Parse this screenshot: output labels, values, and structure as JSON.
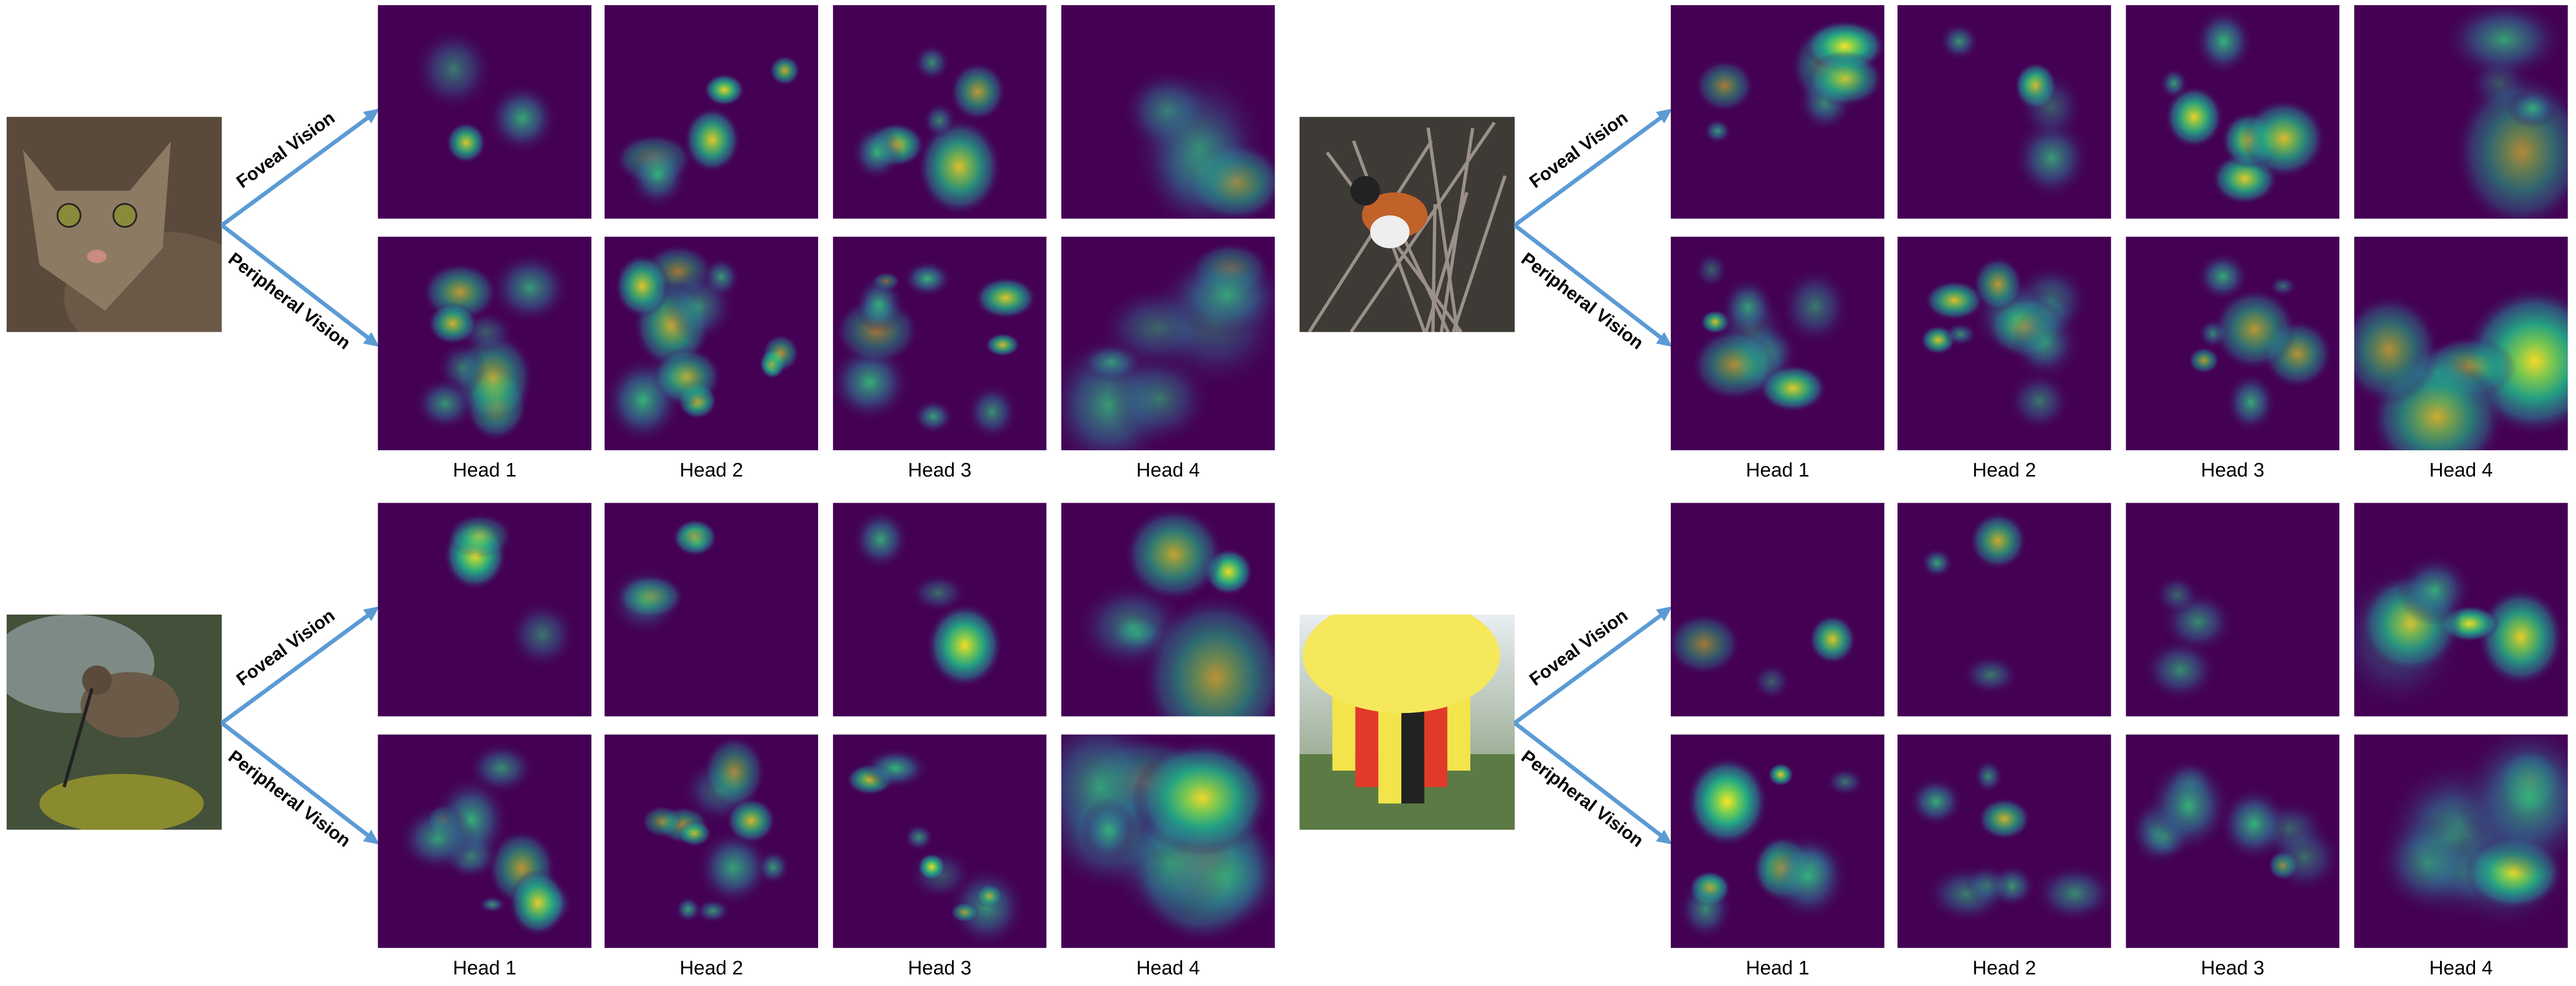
{
  "panels": [
    {
      "foveal_label": "Foveal Vision",
      "peripheral_label": "Peripheral Vision",
      "heads": [
        "Head 1",
        "Head 2",
        "Head 3",
        "Head 4"
      ]
    },
    {
      "foveal_label": "Foveal Vision",
      "peripheral_label": "Peripheral Vision",
      "heads": [
        "Head 1",
        "Head 2",
        "Head 3",
        "Head 4"
      ]
    },
    {
      "foveal_label": "Foveal Vision",
      "peripheral_label": "Peripheral Vision",
      "heads": [
        "Head 1",
        "Head 2",
        "Head 3",
        "Head 4"
      ]
    },
    {
      "foveal_label": "Foveal Vision",
      "peripheral_label": "Peripheral Vision",
      "heads": [
        "Head 1",
        "Head 2",
        "Head 3",
        "Head 4"
      ]
    }
  ]
}
